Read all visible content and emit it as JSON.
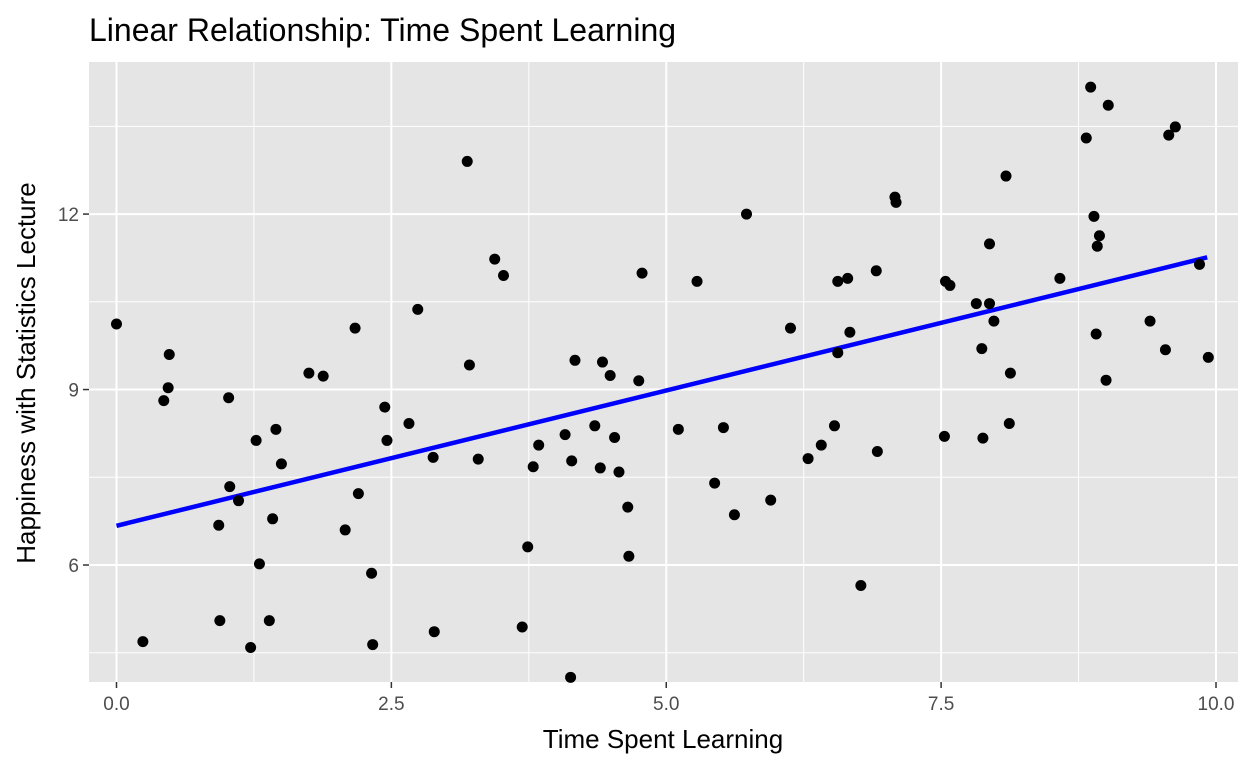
{
  "chart_data": {
    "type": "scatter",
    "title": "Linear Relationship: Time Spent Learning",
    "xlabel": "Time Spent Learning",
    "ylabel": "Happiness with Statistics Lecture",
    "xlim": [
      -0.25,
      10.2
    ],
    "ylim": [
      4.0,
      14.6
    ],
    "x_ticks": [
      0.0,
      2.5,
      5.0,
      7.5,
      10.0
    ],
    "x_tick_labels": [
      "0.0",
      "2.5",
      "5.0",
      "7.5",
      "10.0"
    ],
    "y_ticks": [
      6,
      9,
      12
    ],
    "y_tick_labels": [
      "6",
      "9",
      "12"
    ],
    "grid": true,
    "panel_background": "#e5e5e5",
    "grid_color": "#ffffff",
    "point_color": "#000000",
    "fit_line": {
      "x": [
        0.0,
        9.92
      ],
      "y": [
        6.67,
        11.26
      ],
      "color": "#0000ff"
    },
    "points": [
      [
        0.0,
        10.12
      ],
      [
        0.24,
        4.69
      ],
      [
        0.43,
        8.81
      ],
      [
        0.47,
        9.03
      ],
      [
        0.48,
        9.6
      ],
      [
        0.93,
        6.68
      ],
      [
        0.94,
        5.05
      ],
      [
        1.02,
        8.86
      ],
      [
        1.03,
        7.34
      ],
      [
        1.11,
        7.1
      ],
      [
        1.22,
        4.59
      ],
      [
        1.27,
        8.13
      ],
      [
        1.3,
        6.02
      ],
      [
        1.39,
        5.05
      ],
      [
        1.42,
        6.79
      ],
      [
        1.45,
        8.32
      ],
      [
        1.5,
        7.73
      ],
      [
        1.75,
        9.28
      ],
      [
        1.88,
        9.23
      ],
      [
        2.08,
        6.6
      ],
      [
        2.17,
        10.05
      ],
      [
        2.2,
        7.22
      ],
      [
        2.32,
        5.86
      ],
      [
        2.33,
        4.64
      ],
      [
        2.44,
        8.7
      ],
      [
        2.46,
        8.13
      ],
      [
        2.66,
        8.42
      ],
      [
        2.74,
        10.37
      ],
      [
        2.88,
        7.84
      ],
      [
        2.89,
        4.86
      ],
      [
        3.19,
        12.9
      ],
      [
        3.21,
        9.42
      ],
      [
        3.29,
        7.81
      ],
      [
        3.44,
        11.23
      ],
      [
        3.52,
        10.95
      ],
      [
        3.69,
        4.94
      ],
      [
        3.74,
        6.31
      ],
      [
        3.79,
        7.68
      ],
      [
        3.84,
        8.05
      ],
      [
        4.08,
        8.23
      ],
      [
        4.13,
        4.08
      ],
      [
        4.14,
        7.78
      ],
      [
        4.17,
        9.5
      ],
      [
        4.35,
        8.38
      ],
      [
        4.4,
        7.66
      ],
      [
        4.42,
        9.47
      ],
      [
        4.49,
        9.24
      ],
      [
        4.53,
        8.18
      ],
      [
        4.57,
        7.59
      ],
      [
        4.65,
        6.99
      ],
      [
        4.66,
        6.15
      ],
      [
        4.75,
        9.15
      ],
      [
        4.78,
        10.99
      ],
      [
        5.11,
        8.32
      ],
      [
        5.28,
        10.85
      ],
      [
        5.44,
        7.4
      ],
      [
        5.52,
        8.35
      ],
      [
        5.62,
        6.86
      ],
      [
        5.73,
        12.0
      ],
      [
        5.95,
        7.11
      ],
      [
        6.13,
        10.05
      ],
      [
        6.29,
        7.82
      ],
      [
        6.41,
        8.05
      ],
      [
        6.53,
        8.38
      ],
      [
        6.56,
        10.85
      ],
      [
        6.56,
        9.63
      ],
      [
        6.65,
        10.9
      ],
      [
        6.67,
        9.98
      ],
      [
        6.77,
        5.65
      ],
      [
        6.91,
        11.03
      ],
      [
        6.92,
        7.94
      ],
      [
        7.08,
        12.29
      ],
      [
        7.09,
        12.2
      ],
      [
        7.53,
        8.2
      ],
      [
        7.54,
        10.85
      ],
      [
        7.58,
        10.78
      ],
      [
        7.82,
        10.47
      ],
      [
        7.87,
        9.7
      ],
      [
        7.88,
        8.17
      ],
      [
        7.94,
        11.49
      ],
      [
        7.94,
        10.47
      ],
      [
        7.98,
        10.17
      ],
      [
        8.09,
        12.65
      ],
      [
        8.12,
        8.42
      ],
      [
        8.13,
        9.28
      ],
      [
        8.58,
        10.9
      ],
      [
        8.82,
        13.3
      ],
      [
        8.86,
        14.17
      ],
      [
        8.89,
        11.96
      ],
      [
        8.91,
        9.95
      ],
      [
        8.92,
        11.45
      ],
      [
        8.94,
        11.63
      ],
      [
        9.0,
        9.16
      ],
      [
        9.02,
        13.86
      ],
      [
        9.4,
        10.17
      ],
      [
        9.54,
        9.68
      ],
      [
        9.57,
        13.35
      ],
      [
        9.63,
        13.49
      ],
      [
        9.85,
        11.14
      ],
      [
        9.93,
        9.55
      ]
    ]
  }
}
